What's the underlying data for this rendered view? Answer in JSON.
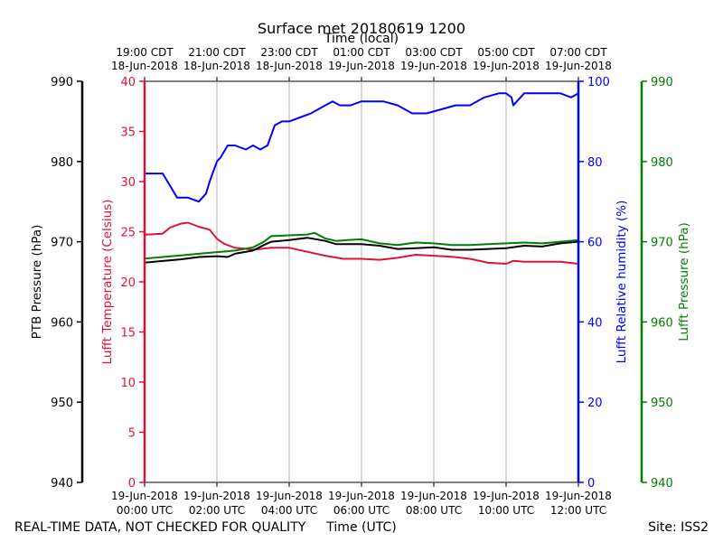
{
  "chart_data": {
    "type": "line",
    "title": "Surface met 20180619 1200",
    "top_axis_label": "Time (local)",
    "bottom_axis_label": "Time (UTC)",
    "footer_left": "REAL-TIME DATA, NOT CHECKED FOR QUALITY",
    "footer_right": "Site: ISS2",
    "x_range_hours": [
      0,
      12
    ],
    "x_ticks_hours": [
      0,
      2,
      4,
      6,
      8,
      10,
      12
    ],
    "bottom_tick_labels": [
      [
        "19-Jun-2018",
        "00:00 UTC"
      ],
      [
        "19-Jun-2018",
        "02:00 UTC"
      ],
      [
        "19-Jun-2018",
        "04:00 UTC"
      ],
      [
        "19-Jun-2018",
        "06:00 UTC"
      ],
      [
        "19-Jun-2018",
        "08:00 UTC"
      ],
      [
        "19-Jun-2018",
        "10:00 UTC"
      ],
      [
        "19-Jun-2018",
        "12:00 UTC"
      ]
    ],
    "top_tick_labels": [
      [
        "19:00 CDT",
        "18-Jun-2018"
      ],
      [
        "21:00 CDT",
        "18-Jun-2018"
      ],
      [
        "23:00 CDT",
        "18-Jun-2018"
      ],
      [
        "01:00 CDT",
        "19-Jun-2018"
      ],
      [
        "03:00 CDT",
        "19-Jun-2018"
      ],
      [
        "05:00 CDT",
        "19-Jun-2018"
      ],
      [
        "07:00 CDT",
        "19-Jun-2018"
      ]
    ],
    "axes": {
      "ptb": {
        "label": "PTB Pressure (hPa)",
        "color": "#000000",
        "ylim": [
          940,
          990
        ],
        "ticks": [
          940,
          950,
          960,
          970,
          980,
          990
        ]
      },
      "temp": {
        "label": "Lufft Temperature (Celsius)",
        "color": "#dc143c",
        "ylim": [
          0,
          40
        ],
        "ticks": [
          0,
          5,
          10,
          15,
          20,
          25,
          30,
          35,
          40
        ]
      },
      "rh": {
        "label": "Lufft Relative humidity (%)",
        "color": "#0000ff",
        "ylim": [
          0,
          100
        ],
        "ticks": [
          0,
          20,
          40,
          60,
          80,
          100
        ]
      },
      "lufft_p": {
        "label": "Lufft Pressure (hPa)",
        "color": "#008000",
        "ylim": [
          940,
          990
        ],
        "ticks": [
          940,
          950,
          960,
          970,
          980,
          990
        ]
      }
    },
    "series": [
      {
        "name": "Lufft Relative humidity",
        "axis": "rh",
        "color": "#0000ff",
        "x": [
          0,
          0.3,
          0.5,
          0.7,
          0.9,
          1.2,
          1.5,
          1.7,
          1.8,
          2.0,
          2.1,
          2.3,
          2.5,
          2.8,
          3.0,
          3.2,
          3.4,
          3.6,
          3.8,
          4.0,
          4.3,
          4.6,
          5.0,
          5.2,
          5.4,
          5.7,
          6.0,
          6.3,
          6.6,
          7.0,
          7.4,
          7.8,
          8.2,
          8.6,
          9.0,
          9.4,
          9.8,
          10.0,
          10.15,
          10.2,
          10.5,
          11.0,
          11.5,
          11.8,
          12.0
        ],
        "values": [
          77,
          77,
          77,
          74,
          71,
          71,
          70,
          72,
          75,
          80,
          81,
          84,
          84,
          83,
          84,
          83,
          84,
          89,
          90,
          90,
          91,
          92,
          94,
          95,
          94,
          94,
          95,
          95,
          95,
          94,
          92,
          92,
          93,
          94,
          94,
          96,
          97,
          97,
          96,
          94,
          97,
          97,
          97,
          96,
          97
        ]
      },
      {
        "name": "Lufft Temperature",
        "axis": "temp",
        "color": "#dc143c",
        "x": [
          0,
          0.5,
          0.7,
          1.0,
          1.2,
          1.5,
          1.8,
          2.0,
          2.2,
          2.5,
          2.8,
          3.0,
          3.5,
          4.0,
          4.5,
          5.0,
          5.5,
          6.0,
          6.5,
          7.0,
          7.5,
          8.0,
          8.5,
          9.0,
          9.5,
          10.0,
          10.2,
          10.5,
          11.0,
          11.5,
          12.0
        ],
        "values": [
          24.7,
          24.8,
          25.4,
          25.8,
          25.9,
          25.5,
          25.2,
          24.3,
          23.8,
          23.4,
          23.3,
          23.2,
          23.4,
          23.4,
          23.0,
          22.6,
          22.3,
          22.3,
          22.2,
          22.4,
          22.7,
          22.6,
          22.5,
          22.3,
          21.9,
          21.8,
          22.1,
          22.0,
          22.0,
          22.0,
          21.8
        ]
      },
      {
        "name": "PTB Pressure",
        "axis": "ptb",
        "color": "#000000",
        "x": [
          0,
          0.5,
          1.0,
          1.5,
          2.0,
          2.3,
          2.5,
          3.0,
          3.3,
          3.5,
          4.0,
          4.5,
          5.0,
          5.3,
          5.6,
          6.0,
          6.5,
          7.0,
          7.5,
          8.0,
          8.5,
          9.0,
          9.5,
          10.0,
          10.5,
          11.0,
          11.5,
          12.0
        ],
        "values": [
          967.4,
          967.6,
          967.8,
          968.1,
          968.2,
          968.1,
          968.5,
          968.9,
          969.6,
          970.0,
          970.2,
          970.5,
          970.1,
          969.7,
          969.7,
          969.7,
          969.5,
          969.1,
          969.2,
          969.3,
          969.0,
          969.0,
          969.1,
          969.2,
          969.5,
          969.4,
          969.8,
          970.0
        ]
      },
      {
        "name": "Lufft Pressure",
        "axis": "lufft_p",
        "color": "#008000",
        "x": [
          0,
          0.5,
          1.0,
          1.5,
          2.0,
          2.5,
          3.0,
          3.3,
          3.5,
          4.0,
          4.5,
          4.7,
          5.0,
          5.3,
          5.6,
          6.0,
          6.5,
          7.0,
          7.5,
          8.0,
          8.5,
          9.0,
          9.5,
          10.0,
          10.5,
          11.0,
          11.5,
          12.0
        ],
        "values": [
          967.9,
          968.1,
          968.3,
          968.5,
          968.7,
          968.9,
          969.3,
          970.0,
          970.7,
          970.8,
          970.9,
          971.1,
          970.4,
          970.1,
          970.2,
          970.3,
          969.8,
          969.6,
          969.9,
          969.8,
          969.6,
          969.6,
          969.7,
          969.8,
          969.9,
          969.8,
          970.0,
          970.2
        ]
      }
    ]
  }
}
